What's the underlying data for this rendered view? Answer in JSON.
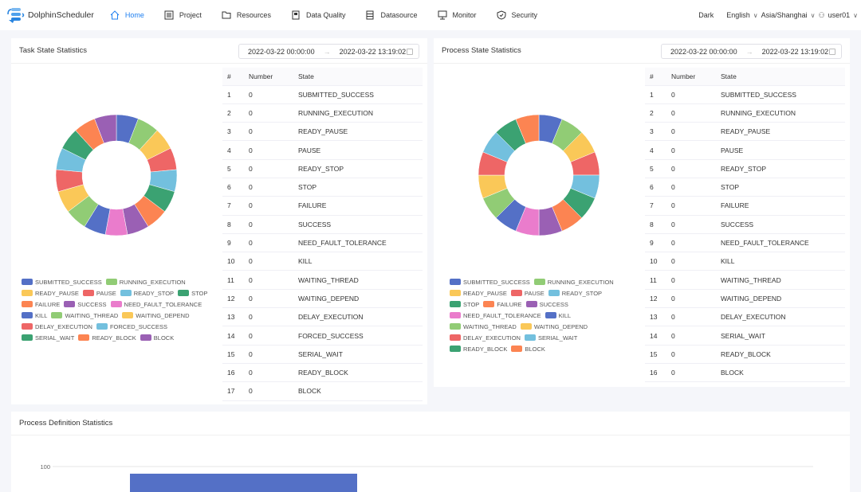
{
  "nav": {
    "brand": "DolphinScheduler",
    "items": [
      {
        "label": "Home",
        "icon": "home-icon",
        "active": true
      },
      {
        "label": "Project",
        "icon": "project-icon"
      },
      {
        "label": "Resources",
        "icon": "folder-icon"
      },
      {
        "label": "Data Quality",
        "icon": "data-quality-icon"
      },
      {
        "label": "Datasource",
        "icon": "database-icon"
      },
      {
        "label": "Monitor",
        "icon": "monitor-icon"
      },
      {
        "label": "Security",
        "icon": "shield-icon"
      }
    ],
    "theme": "Dark",
    "language": "English",
    "timezone": "Asia/Shanghai",
    "user": "user01"
  },
  "palette": [
    "#5470c6",
    "#91cc75",
    "#fac858",
    "#ee6666",
    "#73c0de",
    "#3ba272",
    "#fc8452",
    "#9a60b4",
    "#ea7ccc"
  ],
  "table_headers": [
    "#",
    "Number",
    "State"
  ],
  "task": {
    "title": "Task State Statistics",
    "start": "2022-03-22 00:00:00",
    "end": "2022-03-22 13:19:02",
    "rows": [
      [
        "1",
        "0",
        "SUBMITTED_SUCCESS"
      ],
      [
        "2",
        "0",
        "RUNNING_EXECUTION"
      ],
      [
        "3",
        "0",
        "READY_PAUSE"
      ],
      [
        "4",
        "0",
        "PAUSE"
      ],
      [
        "5",
        "0",
        "READY_STOP"
      ],
      [
        "6",
        "0",
        "STOP"
      ],
      [
        "7",
        "0",
        "FAILURE"
      ],
      [
        "8",
        "0",
        "SUCCESS"
      ],
      [
        "9",
        "0",
        "NEED_FAULT_TOLERANCE"
      ],
      [
        "10",
        "0",
        "KILL"
      ],
      [
        "11",
        "0",
        "WAITING_THREAD"
      ],
      [
        "12",
        "0",
        "WAITING_DEPEND"
      ],
      [
        "13",
        "0",
        "DELAY_EXECUTION"
      ],
      [
        "14",
        "0",
        "FORCED_SUCCESS"
      ],
      [
        "15",
        "0",
        "SERIAL_WAIT"
      ],
      [
        "16",
        "0",
        "READY_BLOCK"
      ],
      [
        "17",
        "0",
        "BLOCK"
      ]
    ]
  },
  "process": {
    "title": "Process State Statistics",
    "start": "2022-03-22 00:00:00",
    "end": "2022-03-22 13:19:02",
    "rows": [
      [
        "1",
        "0",
        "SUBMITTED_SUCCESS"
      ],
      [
        "2",
        "0",
        "RUNNING_EXECUTION"
      ],
      [
        "3",
        "0",
        "READY_PAUSE"
      ],
      [
        "4",
        "0",
        "PAUSE"
      ],
      [
        "5",
        "0",
        "READY_STOP"
      ],
      [
        "6",
        "0",
        "STOP"
      ],
      [
        "7",
        "0",
        "FAILURE"
      ],
      [
        "8",
        "0",
        "SUCCESS"
      ],
      [
        "9",
        "0",
        "NEED_FAULT_TOLERANCE"
      ],
      [
        "10",
        "0",
        "KILL"
      ],
      [
        "11",
        "0",
        "WAITING_THREAD"
      ],
      [
        "12",
        "0",
        "WAITING_DEPEND"
      ],
      [
        "13",
        "0",
        "DELAY_EXECUTION"
      ],
      [
        "14",
        "0",
        "SERIAL_WAIT"
      ],
      [
        "15",
        "0",
        "READY_BLOCK"
      ],
      [
        "16",
        "0",
        "BLOCK"
      ]
    ]
  },
  "definition": {
    "title": "Process Definition Statistics"
  },
  "chart_data": [
    {
      "type": "pie",
      "variant": "donut",
      "categories": [
        "SUBMITTED_SUCCESS",
        "RUNNING_EXECUTION",
        "READY_PAUSE",
        "PAUSE",
        "READY_STOP",
        "STOP",
        "FAILURE",
        "SUCCESS",
        "NEED_FAULT_TOLERANCE",
        "KILL",
        "WAITING_THREAD",
        "WAITING_DEPEND",
        "DELAY_EXECUTION",
        "FORCED_SUCCESS",
        "SERIAL_WAIT",
        "READY_BLOCK",
        "BLOCK"
      ],
      "values": [
        0,
        0,
        0,
        0,
        0,
        0,
        0,
        0,
        0,
        0,
        0,
        0,
        0,
        0,
        0,
        0,
        0
      ],
      "legend": "bottom"
    },
    {
      "type": "pie",
      "variant": "donut",
      "categories": [
        "SUBMITTED_SUCCESS",
        "RUNNING_EXECUTION",
        "READY_PAUSE",
        "PAUSE",
        "READY_STOP",
        "STOP",
        "FAILURE",
        "SUCCESS",
        "NEED_FAULT_TOLERANCE",
        "KILL",
        "WAITING_THREAD",
        "WAITING_DEPEND",
        "DELAY_EXECUTION",
        "SERIAL_WAIT",
        "READY_BLOCK",
        "BLOCK"
      ],
      "values": [
        0,
        0,
        0,
        0,
        0,
        0,
        0,
        0,
        0,
        0,
        0,
        0,
        0,
        0,
        0,
        0
      ],
      "legend": "bottom"
    },
    {
      "type": "bar",
      "y_ticks": [
        "100"
      ],
      "grid": true,
      "color": "#5470c6"
    }
  ]
}
